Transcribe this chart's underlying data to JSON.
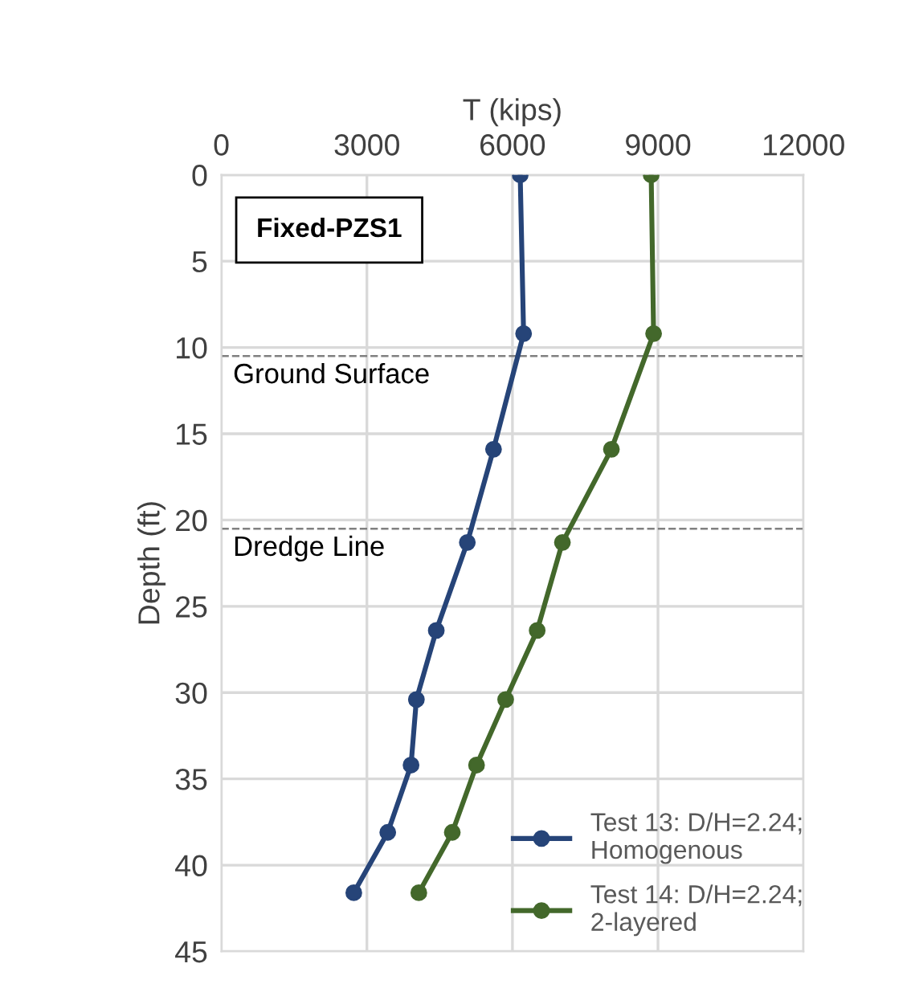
{
  "chart_data": {
    "type": "line",
    "xlabel": "T (kips)",
    "ylabel": "Depth (ft)",
    "xlim": [
      0,
      12000
    ],
    "xticks": [
      0,
      3000,
      6000,
      9000,
      12000
    ],
    "ylim": [
      45,
      0
    ],
    "yticks": [
      0,
      5,
      10,
      15,
      20,
      25,
      30,
      35,
      40,
      45
    ],
    "grid": true,
    "marker": "circle",
    "legend": "bottom right",
    "annotations": [
      "Fixed-PZS1"
    ],
    "ref_lines": [
      {
        "axis": "y",
        "value": 10.5,
        "label": "Ground Surface",
        "color": "#808080",
        "line_style": "dashed"
      },
      {
        "axis": "y",
        "value": 20.5,
        "label": "Dredge Line",
        "color": "#808080",
        "line_style": "dashed"
      }
    ],
    "series": [
      {
        "name": "Test 13: D/H=2.24;\nHomogenous",
        "color": "#264478",
        "x": [
          6160,
          6230,
          5610,
          5070,
          4430,
          4020,
          3910,
          3430,
          2730
        ],
        "values": [
          0,
          9.2,
          15.9,
          21.3,
          26.4,
          30.4,
          34.2,
          38.1,
          41.6
        ]
      },
      {
        "name": "Test 14: D/H=2.24;\n2-layered",
        "color": "#43682b",
        "x": [
          8860,
          8910,
          8040,
          7030,
          6510,
          5860,
          5260,
          4760,
          4070
        ],
        "values": [
          0,
          9.2,
          15.9,
          21.3,
          26.4,
          30.4,
          34.2,
          38.1,
          41.6
        ]
      }
    ]
  }
}
